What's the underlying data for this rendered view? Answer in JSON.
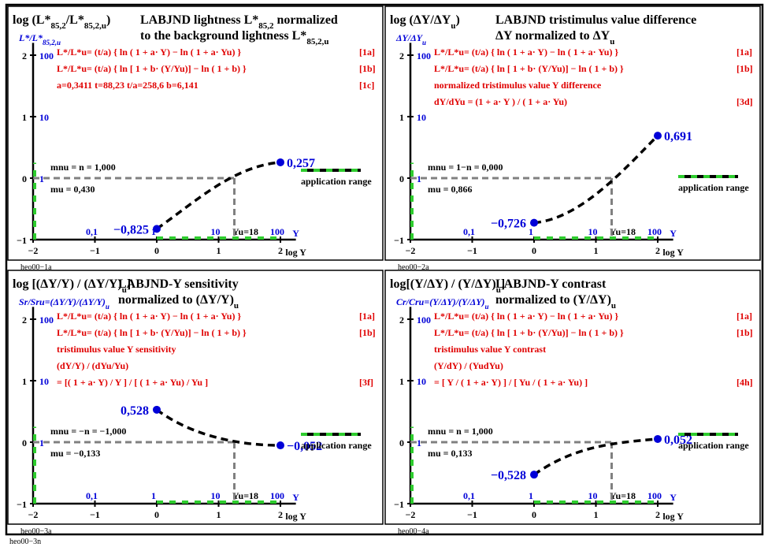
{
  "footer": "heo00−3n",
  "panels": [
    {
      "id": "p1",
      "label": "heo00−1a",
      "title_left_1": "log (L*",
      "title_left_sub1": "85,2",
      "title_left_2": "/L*",
      "title_left_sub2": "85,2,u",
      "title_left_3": ")",
      "title_right_1": "LABJND lightness L*",
      "title_right_sub1": "85,2",
      "title_right_2": " normalized",
      "title_right_3": "to the background lightness L*",
      "title_right_sub3": "85,2,u",
      "ylabel": "L*/L*",
      "ylabel_sub": "85,2,u",
      "formulas": [
        {
          "text": "L*/L*u= (t/a) { ln ( 1 + a· Y) − ln ( 1 + a· Yu) }",
          "tag": "[1a]"
        },
        {
          "text": "L*/L*u= (t/a) { ln [ 1 + b· (Y/Yu)] − ln ( 1 + b) }",
          "tag": "[1b]"
        },
        {
          "text": "a=0,3411     t=88,23       t/a=258,6     b=6,141",
          "tag": "[1c]"
        }
      ],
      "m_nu": "mnu = n = 1,000",
      "m_u": "mu = 0,430",
      "start_label": "−0,825",
      "end_label": "0,257",
      "start_y": -0.825,
      "end_y": 0.257,
      "curve_shape": "rise"
    },
    {
      "id": "p2",
      "label": "heo00−2a",
      "title_left_1": "log (ΔY/ΔY",
      "title_left_sub1": "u",
      "title_left_2": ")",
      "title_left_sub2": "",
      "title_left_3": "",
      "title_right_1": "LABJND tristimulus value difference",
      "title_right_sub1": "",
      "title_right_2": "",
      "title_right_3": "ΔY normalized to ΔY",
      "title_right_sub3": "u",
      "ylabel": "ΔY/ΔY",
      "ylabel_sub": "u",
      "formulas": [
        {
          "text": "L*/L*u= (t/a) { ln ( 1 + a· Y) − ln ( 1 + a· Yu) }",
          "tag": "[1a]"
        },
        {
          "text": "L*/L*u= (t/a) { ln [ 1 + b· (Y/Yu)] − ln ( 1 + b) }",
          "tag": "[1b]"
        },
        {
          "text": "normalized tristimulus value Y difference",
          "tag": ""
        },
        {
          "text": "dY/dYu = (1 + a· Y ) / ( 1 + a· Yu)",
          "tag": "[3d]"
        }
      ],
      "m_nu": "mnu = 1−n = 0,000",
      "m_u": "mu = 0,866",
      "start_label": "−0,726",
      "end_label": "0,691",
      "start_y": -0.726,
      "end_y": 0.691,
      "curve_shape": "convex"
    },
    {
      "id": "p3",
      "label": "heo00−3a",
      "title_left_1": "log [(ΔY/Y) / (ΔY/Y)",
      "title_left_sub1": "u",
      "title_left_2": "]",
      "title_left_sub2": "",
      "title_left_3": "",
      "title_right_1": "LABJND-Y sensitivity",
      "title_right_sub1": "",
      "title_right_2": "",
      "title_right_3": "normalized to (ΔY/Y)",
      "title_right_sub3": "u",
      "ylabel": "Sr/Sru=(ΔY/Y)/(ΔY/Y)",
      "ylabel_sub": "u",
      "formulas": [
        {
          "text": "L*/L*u= (t/a) { ln ( 1 + a· Y) − ln ( 1 + a· Yu) }",
          "tag": "[1a]"
        },
        {
          "text": "L*/L*u= (t/a) { ln [ 1 + b· (Y/Yu)] − ln ( 1 + b) }",
          "tag": "[1b]"
        },
        {
          "text": "tristimulus value Y sensitivity",
          "tag": ""
        },
        {
          "text": "(dY/Y) / (dYu/Yu)",
          "tag": ""
        },
        {
          "text": "     = [( 1 + a· Y) / Y ] / [ ( 1 + a· Yu) / Yu ]",
          "tag": "[3f]"
        }
      ],
      "m_nu": "mnu = −n = −1,000",
      "m_u": "mu = −0,133",
      "start_label": "0,528",
      "end_label": "−0,052",
      "start_y": 0.528,
      "end_y": -0.052,
      "curve_shape": "fall"
    },
    {
      "id": "p4",
      "label": "heo00−4a",
      "title_left_1": "log[(Y/ΔY) / (Y/ΔY)",
      "title_left_sub1": "u",
      "title_left_2": "]",
      "title_left_sub2": "",
      "title_left_3": "",
      "title_right_1": "LABJND-Y contrast",
      "title_right_sub1": "",
      "title_right_2": "",
      "title_right_3": "normalized to (Y/ΔY)",
      "title_right_sub3": "u",
      "ylabel": "Cr/Cru=(Y/ΔY)/(Y/ΔY)",
      "ylabel_sub": "u",
      "formulas": [
        {
          "text": "L*/L*u= (t/a) { ln ( 1 + a· Y) − ln ( 1 + a· Yu) }",
          "tag": "[1a]"
        },
        {
          "text": "L*/L*u= (t/a) { ln [ 1 + b· (Y/Yu)] − ln ( 1 + b) }",
          "tag": "[1b]"
        },
        {
          "text": "tristimulus value Y contrast",
          "tag": ""
        },
        {
          "text": "(Y/dY) / (YudYu)",
          "tag": ""
        },
        {
          "text": "     = [ Y / ( 1 + a· Y) ] / [ Yu / ( 1 + a· Yu) ]",
          "tag": "[4h]"
        }
      ],
      "m_nu": "mnu = n = 1,000",
      "m_u": "mu = 0,133",
      "start_label": "−0,528",
      "end_label": "0,052",
      "start_y": -0.528,
      "end_y": 0.052,
      "curve_shape": "rise"
    }
  ],
  "axis": {
    "x_ticks": [
      "−2",
      "−1",
      "0",
      "1",
      "2"
    ],
    "x_values": [
      -2,
      -1,
      0,
      1,
      2
    ],
    "y_ticks": [
      "−1",
      "0",
      "1",
      "2"
    ],
    "y_values": [
      -1,
      0,
      1,
      2
    ],
    "y_linear": [
      "1",
      "10",
      "100"
    ],
    "x_linear": [
      "0,1",
      "1",
      "10",
      "100"
    ],
    "x_linear_values": [
      -1,
      0,
      1,
      2
    ],
    "yu_label": "Yu=18",
    "yu_logx": 1.255,
    "x_title": "log Y",
    "y_top_label": "Y",
    "application_range": "application range"
  }
}
